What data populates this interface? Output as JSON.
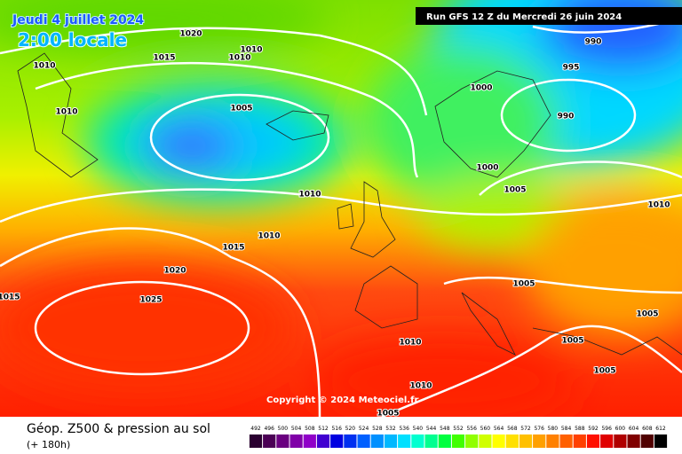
{
  "header": {
    "date": "Jeudi 4 juillet 2024",
    "time": "2:00 locale",
    "run": "Run GFS 12 Z du Mercredi 26 juin 2024"
  },
  "isobar_labels": [
    1020,
    1010,
    1015,
    1010,
    1010,
    1010,
    1005,
    990,
    995,
    1000,
    990,
    1000,
    1005,
    1010,
    1010,
    1010,
    1015,
    1020,
    1015,
    1025,
    1005,
    1005,
    1010,
    1005,
    1005,
    1010,
    1005
  ],
  "copyright": "Copyright © 2024 Meteociel.fr",
  "legend": {
    "title": "Géop. Z500 & pression au sol",
    "subtitle": "(+ 180h)"
  },
  "scale": {
    "ticks": [
      492,
      496,
      500,
      504,
      508,
      512,
      516,
      520,
      524,
      528,
      532,
      536,
      540,
      544,
      548,
      552,
      556,
      560,
      564,
      568,
      572,
      576,
      580,
      584,
      588,
      592,
      596,
      600,
      604,
      608,
      612
    ],
    "colors": [
      "#2a0030",
      "#4b0055",
      "#6a0080",
      "#8000a8",
      "#9000c8",
      "#4000d0",
      "#0000e0",
      "#0030f0",
      "#0060ff",
      "#0090ff",
      "#00b8ff",
      "#00e0ff",
      "#00ffd0",
      "#00ff90",
      "#00ff40",
      "#40ff00",
      "#90ff00",
      "#d0ff00",
      "#ffff00",
      "#ffe000",
      "#ffc000",
      "#ffa000",
      "#ff8000",
      "#ff6000",
      "#ff4000",
      "#ff1000",
      "#e00000",
      "#b00000",
      "#800000",
      "#500000",
      "#000000"
    ]
  }
}
